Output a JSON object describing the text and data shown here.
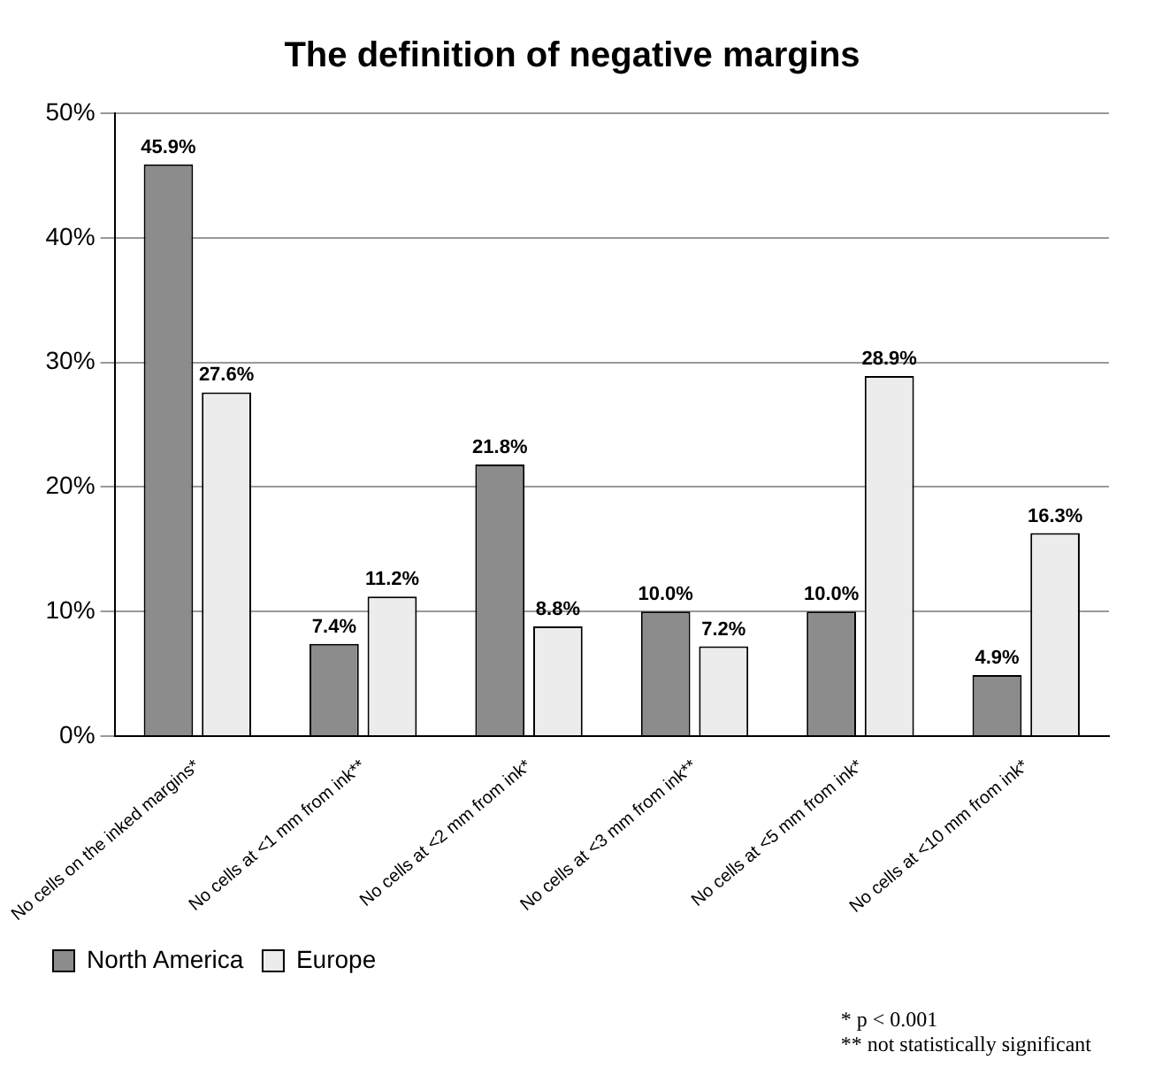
{
  "chart_data": {
    "type": "bar",
    "title": "The definition of negative margins",
    "categories": [
      "No cells on the inked margins*",
      "No cells at <1 mm from ink**",
      "No cells at <2 mm from ink*",
      "No cells at <3 mm from ink**",
      "No cells at <5 mm from ink*",
      "No cells at <10 mm from ink*"
    ],
    "series": [
      {
        "name": "North America",
        "color": "#8c8c8c",
        "values": [
          45.9,
          7.4,
          21.8,
          10.0,
          10.0,
          4.9
        ],
        "value_labels": [
          "45.9%",
          "7.4%",
          "21.8%",
          "10.0%",
          "10.0%",
          "4.9%"
        ]
      },
      {
        "name": "Europe",
        "color": "#ececec",
        "values": [
          27.6,
          11.2,
          8.8,
          7.2,
          28.9,
          16.3
        ],
        "value_labels": [
          "27.6%",
          "11.2%",
          "8.8%",
          "7.2%",
          "28.9%",
          "16.3%"
        ]
      }
    ],
    "ylim": [
      0,
      50
    ],
    "yticks": [
      {
        "value": 0,
        "label": "0%"
      },
      {
        "value": 10,
        "label": "10%"
      },
      {
        "value": 20,
        "label": "20%"
      },
      {
        "value": 30,
        "label": "30%"
      },
      {
        "value": 40,
        "label": "40%"
      },
      {
        "value": 50,
        "label": "50%"
      }
    ],
    "grid": "y",
    "legend": "bottom left",
    "annotations": [
      "* p < 0.001",
      "** not statistically significant"
    ]
  }
}
